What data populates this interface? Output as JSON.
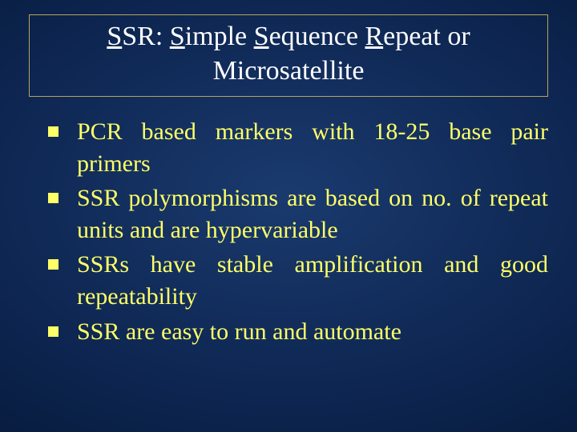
{
  "slide": {
    "background": {
      "gradient_center": "#1a3a6e",
      "gradient_mid": "#0d2550",
      "gradient_outer": "#021530",
      "gradient_edge": "#000814"
    },
    "title": {
      "segments": [
        {
          "text": "S",
          "underline": true
        },
        {
          "text": "SR: ",
          "underline": false
        },
        {
          "text": "S",
          "underline": true
        },
        {
          "text": "imple ",
          "underline": false
        },
        {
          "text": "S",
          "underline": true
        },
        {
          "text": "equence ",
          "underline": false
        },
        {
          "text": "R",
          "underline": true
        },
        {
          "text": "epeat or Microsatellite",
          "underline": false
        }
      ],
      "color": "#ffffff",
      "border_color": "#b8a45a",
      "fontsize": 34
    },
    "bullets": {
      "color": "#ffff66",
      "marker_color": "#ffff66",
      "marker_shape": "square",
      "fontsize": 30,
      "items": [
        "PCR based markers with 18-25 base pair primers",
        "SSR polymorphisms are based on no. of repeat units and are hypervariable",
        "SSRs have stable amplification and good repeatability",
        "SSR are easy to run and automate"
      ]
    }
  }
}
